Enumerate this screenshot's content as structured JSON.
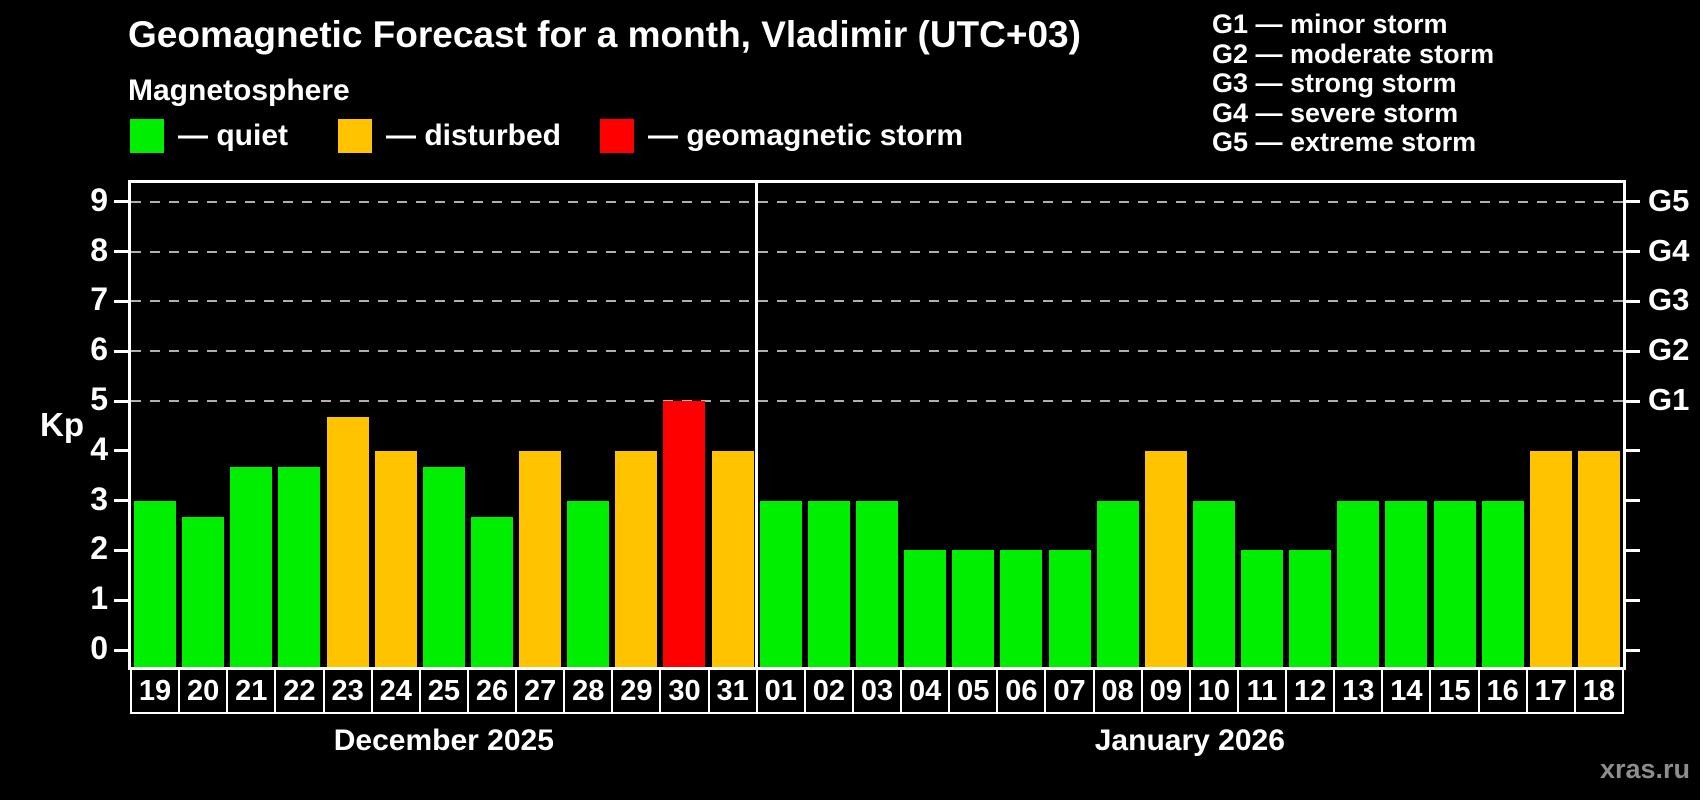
{
  "title": "Geomagnetic Forecast for a month, Vladimir (UTC+03)",
  "subtitle": "Magnetosphere",
  "legend": {
    "items": [
      {
        "key": "quiet",
        "label": "— quiet",
        "color": "#00ee00"
      },
      {
        "key": "disturbed",
        "label": "— disturbed",
        "color": "#ffc300"
      },
      {
        "key": "storm",
        "label": "— geomagnetic storm",
        "color": "#ff0000"
      }
    ]
  },
  "g_legend": [
    "G1 — minor storm",
    "G2 — moderate storm",
    "G3 — strong storm",
    "G4 — severe storm",
    "G5 — extreme storm"
  ],
  "watermark": "xras.ru",
  "chart_data": {
    "type": "bar",
    "ylabel": "Kp",
    "ylim": [
      0,
      9
    ],
    "yticks": [
      0,
      1,
      2,
      3,
      4,
      5,
      6,
      7,
      8,
      9
    ],
    "gridlines": [
      5,
      6,
      7,
      8,
      9
    ],
    "grid_color": "#b0b0b0",
    "right_axis_labels": [
      {
        "label": "G1",
        "value": 5
      },
      {
        "label": "G2",
        "value": 6
      },
      {
        "label": "G3",
        "value": 7
      },
      {
        "label": "G4",
        "value": 8
      },
      {
        "label": "G5",
        "value": 9
      }
    ],
    "colors": {
      "quiet": "#00ee00",
      "disturbed": "#ffc300",
      "storm": "#ff0000"
    },
    "groups": [
      {
        "label": "December 2025",
        "days": [
          {
            "day": "19",
            "value": 3.0,
            "status": "quiet"
          },
          {
            "day": "20",
            "value": 2.67,
            "status": "quiet"
          },
          {
            "day": "21",
            "value": 3.67,
            "status": "quiet"
          },
          {
            "day": "22",
            "value": 3.67,
            "status": "quiet"
          },
          {
            "day": "23",
            "value": 4.67,
            "status": "disturbed"
          },
          {
            "day": "24",
            "value": 4.0,
            "status": "disturbed"
          },
          {
            "day": "25",
            "value": 3.67,
            "status": "quiet"
          },
          {
            "day": "26",
            "value": 2.67,
            "status": "quiet"
          },
          {
            "day": "27",
            "value": 4.0,
            "status": "disturbed"
          },
          {
            "day": "28",
            "value": 3.0,
            "status": "quiet"
          },
          {
            "day": "29",
            "value": 4.0,
            "status": "disturbed"
          },
          {
            "day": "30",
            "value": 5.0,
            "status": "storm"
          },
          {
            "day": "31",
            "value": 4.0,
            "status": "disturbed"
          }
        ]
      },
      {
        "label": "January 2026",
        "days": [
          {
            "day": "01",
            "value": 3.0,
            "status": "quiet"
          },
          {
            "day": "02",
            "value": 3.0,
            "status": "quiet"
          },
          {
            "day": "03",
            "value": 3.0,
            "status": "quiet"
          },
          {
            "day": "04",
            "value": 2.0,
            "status": "quiet"
          },
          {
            "day": "05",
            "value": 2.0,
            "status": "quiet"
          },
          {
            "day": "06",
            "value": 2.0,
            "status": "quiet"
          },
          {
            "day": "07",
            "value": 2.0,
            "status": "quiet"
          },
          {
            "day": "08",
            "value": 3.0,
            "status": "quiet"
          },
          {
            "day": "09",
            "value": 4.0,
            "status": "disturbed"
          },
          {
            "day": "10",
            "value": 3.0,
            "status": "quiet"
          },
          {
            "day": "11",
            "value": 2.0,
            "status": "quiet"
          },
          {
            "day": "12",
            "value": 2.0,
            "status": "quiet"
          },
          {
            "day": "13",
            "value": 3.0,
            "status": "quiet"
          },
          {
            "day": "14",
            "value": 3.0,
            "status": "quiet"
          },
          {
            "day": "15",
            "value": 3.0,
            "status": "quiet"
          },
          {
            "day": "16",
            "value": 3.0,
            "status": "quiet"
          },
          {
            "day": "17",
            "value": 4.0,
            "status": "disturbed"
          },
          {
            "day": "18",
            "value": 4.0,
            "status": "disturbed"
          }
        ]
      }
    ]
  }
}
